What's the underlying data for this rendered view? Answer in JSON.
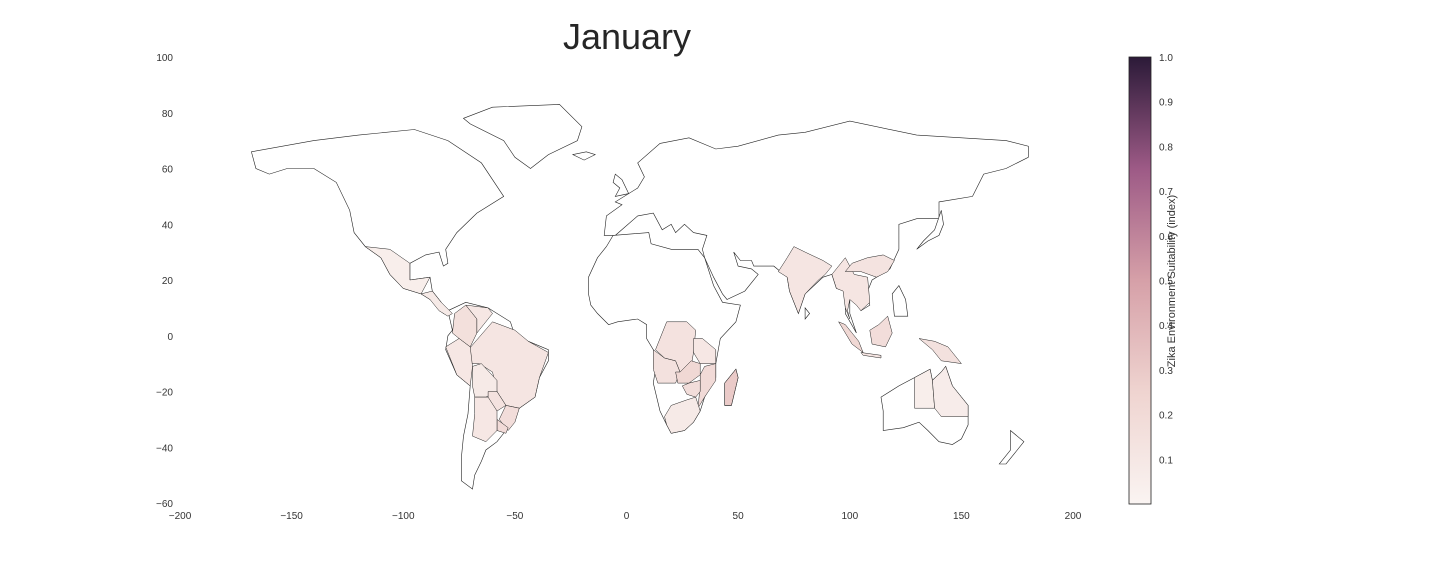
{
  "chart_data": {
    "type": "choropleth",
    "title": "January",
    "xlim": [
      -200,
      200
    ],
    "ylim": [
      -60,
      100
    ],
    "x_ticks": [
      -200,
      -150,
      -100,
      -50,
      0,
      50,
      100,
      150,
      200
    ],
    "x_tick_labels": [
      "−200",
      "−150",
      "−100",
      "−50",
      "0",
      "50",
      "100",
      "150",
      "200"
    ],
    "y_ticks": [
      100,
      80,
      60,
      40,
      20,
      0,
      -20,
      -40,
      -60
    ],
    "y_tick_labels": [
      "100",
      "80",
      "60",
      "40",
      "20",
      "0",
      "−20",
      "−40",
      "−60"
    ],
    "colorbar": {
      "label": "Zika Environment Suitability (index)",
      "range": [
        0,
        1
      ],
      "ticks": [
        0.1,
        0.2,
        0.3,
        0.4,
        0.5,
        0.6,
        0.7,
        0.8,
        0.9,
        1.0
      ],
      "tick_labels": [
        "0.1",
        "0.2",
        "0.3",
        "0.4",
        "0.5",
        "0.6",
        "0.7",
        "0.8",
        "0.9",
        "1.0"
      ],
      "colors": [
        "#faf4f2",
        "#efd4d0",
        "#d6a0a8",
        "#9d5a86",
        "#2b1a38"
      ]
    },
    "regions": [
      {
        "name": "Brazil",
        "value": 0.12
      },
      {
        "name": "South Brazil",
        "value": 0.18
      },
      {
        "name": "Colombia",
        "value": 0.16
      },
      {
        "name": "Venezuela",
        "value": 0.1
      },
      {
        "name": "Peru",
        "value": 0.1
      },
      {
        "name": "Bolivia",
        "value": 0.08
      },
      {
        "name": "Paraguay",
        "value": 0.14
      },
      {
        "name": "Uruguay",
        "value": 0.2
      },
      {
        "name": "Argentina north",
        "value": 0.1
      },
      {
        "name": "Mexico",
        "value": 0.05
      },
      {
        "name": "Central America",
        "value": 0.08
      },
      {
        "name": "Angola",
        "value": 0.15
      },
      {
        "name": "DR Congo",
        "value": 0.14
      },
      {
        "name": "Zambia",
        "value": 0.22
      },
      {
        "name": "Mozambique",
        "value": 0.2
      },
      {
        "name": "Zimbabwe",
        "value": 0.18
      },
      {
        "name": "South Africa",
        "value": 0.08
      },
      {
        "name": "Madagascar",
        "value": 0.3
      },
      {
        "name": "Tanzania",
        "value": 0.1
      },
      {
        "name": "India",
        "value": 0.12
      },
      {
        "name": "Southeast Asia",
        "value": 0.12
      },
      {
        "name": "South China",
        "value": 0.13
      },
      {
        "name": "Sumatra",
        "value": 0.22
      },
      {
        "name": "Borneo",
        "value": 0.18
      },
      {
        "name": "New Guinea",
        "value": 0.15
      },
      {
        "name": "Java",
        "value": 0.12
      },
      {
        "name": "Australia north",
        "value": 0.05
      },
      {
        "name": "Queensland",
        "value": 0.06
      }
    ]
  }
}
